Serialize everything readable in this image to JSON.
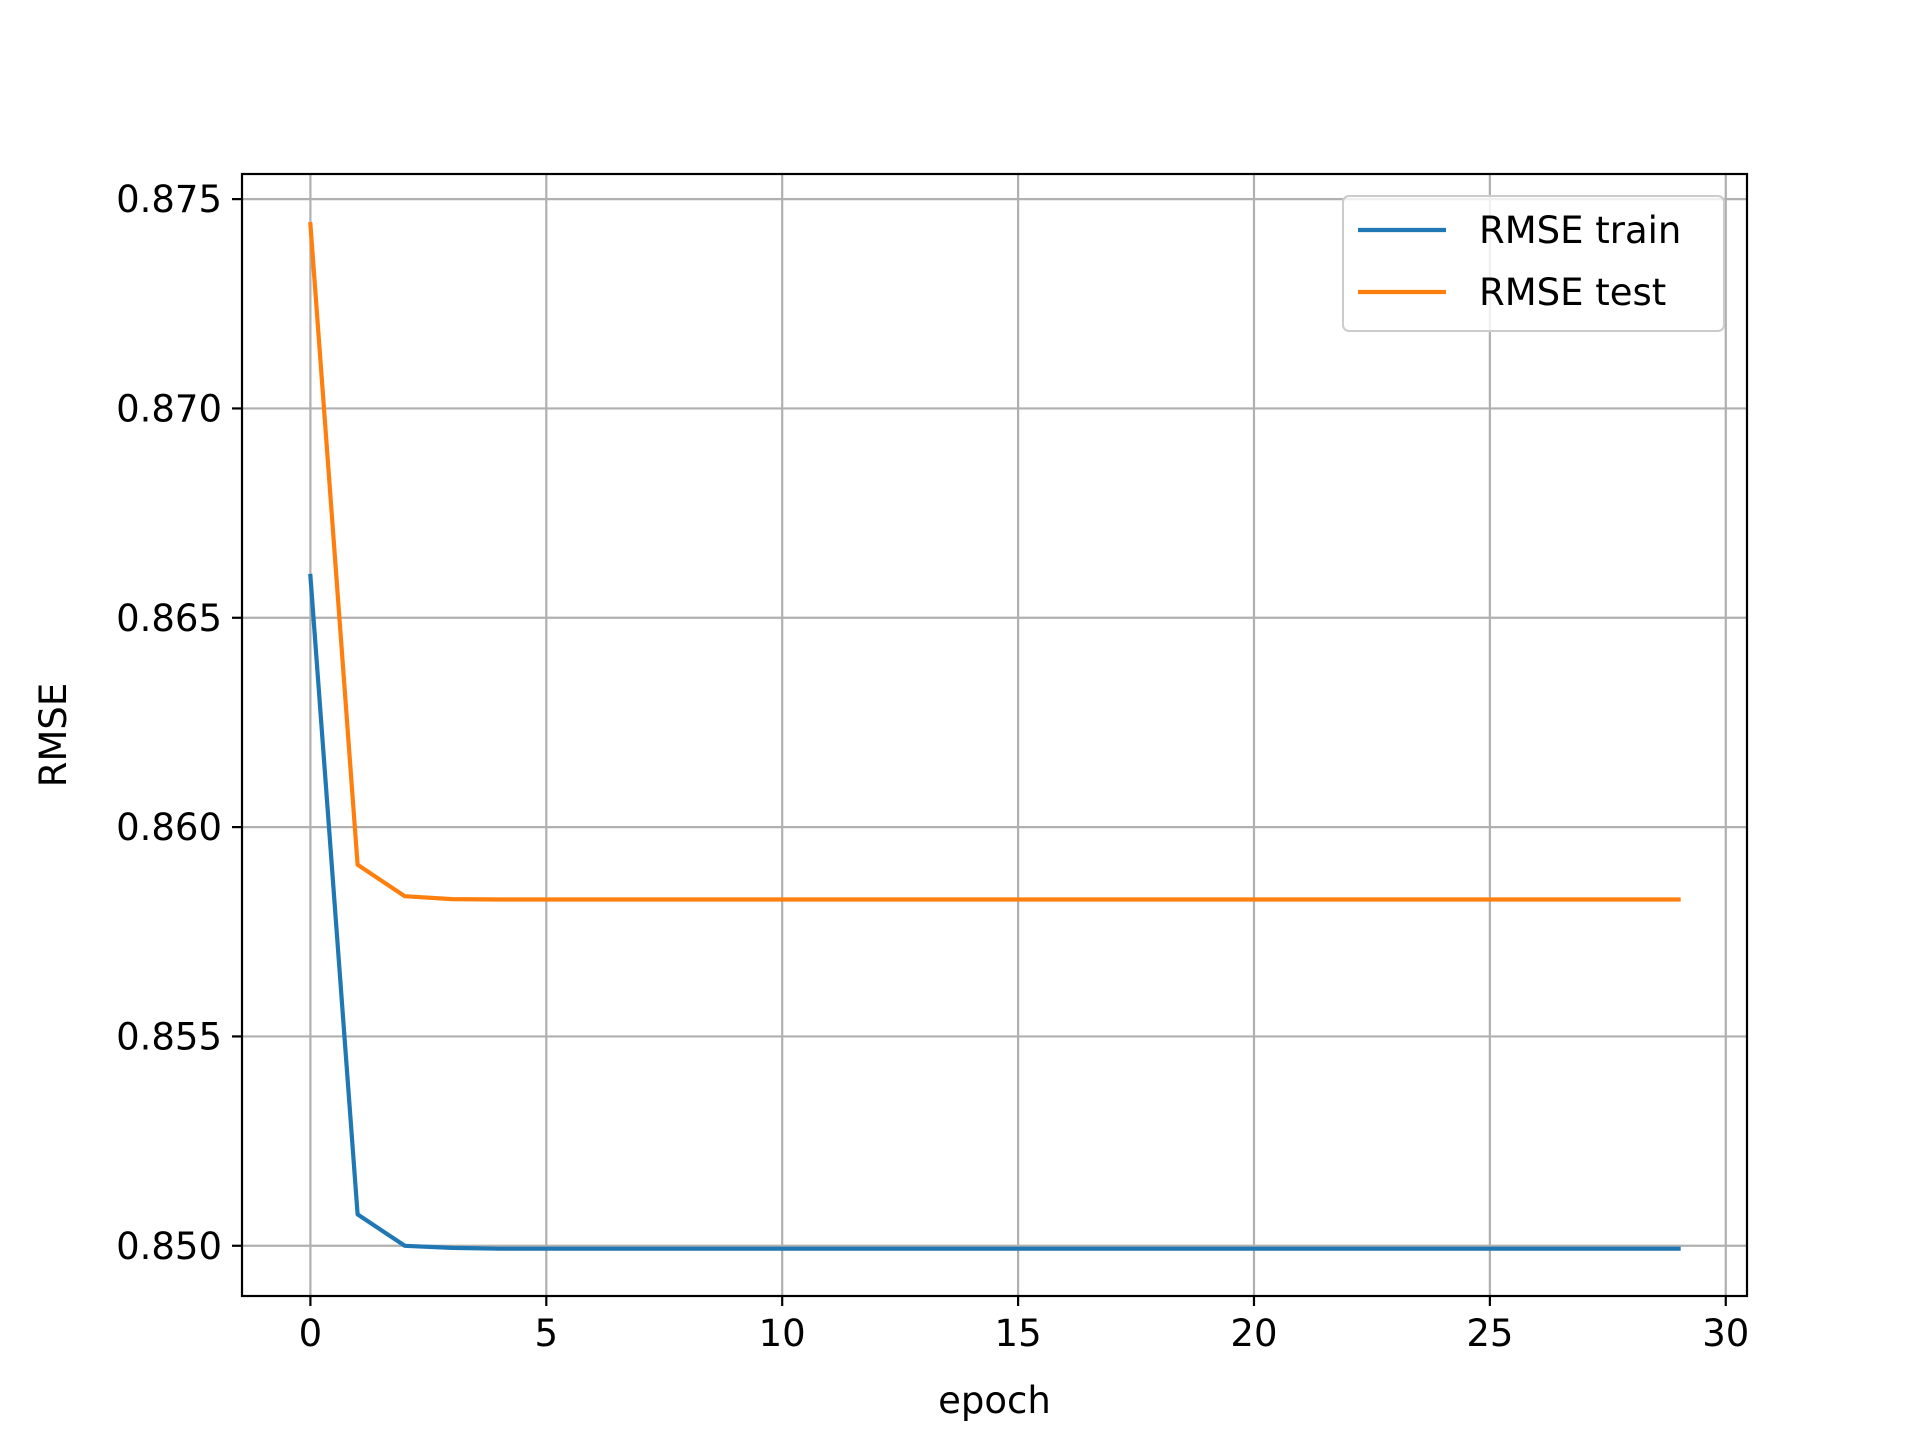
{
  "chart_data": {
    "type": "line",
    "title": "",
    "xlabel": "epoch",
    "ylabel": "RMSE",
    "xlim": [
      -1.45,
      30.45
    ],
    "ylim": [
      0.8488,
      0.8756
    ],
    "xticks": [
      0,
      5,
      10,
      15,
      20,
      25,
      30
    ],
    "xtick_labels": [
      "0",
      "5",
      "10",
      "15",
      "20",
      "25",
      "30"
    ],
    "yticks": [
      0.85,
      0.855,
      0.86,
      0.865,
      0.87,
      0.875
    ],
    "ytick_labels": [
      "0.850",
      "0.855",
      "0.860",
      "0.865",
      "0.870",
      "0.875"
    ],
    "grid": true,
    "legend_position": "top-right",
    "x": [
      0,
      1,
      2,
      3,
      4,
      5,
      6,
      7,
      8,
      9,
      10,
      11,
      12,
      13,
      14,
      15,
      16,
      17,
      18,
      19,
      20,
      21,
      22,
      23,
      24,
      25,
      26,
      27,
      28,
      29
    ],
    "series": [
      {
        "name": "RMSE train",
        "color": "#1f77b4",
        "values": [
          0.866,
          0.85075,
          0.85,
          0.84995,
          0.84993,
          0.84993,
          0.84993,
          0.84993,
          0.84993,
          0.84993,
          0.84993,
          0.84993,
          0.84993,
          0.84993,
          0.84993,
          0.84993,
          0.84993,
          0.84993,
          0.84993,
          0.84993,
          0.84993,
          0.84993,
          0.84993,
          0.84993,
          0.84993,
          0.84993,
          0.84993,
          0.84993,
          0.84993,
          0.84993
        ]
      },
      {
        "name": "RMSE test",
        "color": "#ff7f0e",
        "values": [
          0.8744,
          0.8591,
          0.85835,
          0.85828,
          0.85827,
          0.85827,
          0.85827,
          0.85827,
          0.85827,
          0.85827,
          0.85827,
          0.85827,
          0.85827,
          0.85827,
          0.85827,
          0.85827,
          0.85827,
          0.85827,
          0.85827,
          0.85827,
          0.85827,
          0.85827,
          0.85827,
          0.85827,
          0.85827,
          0.85827,
          0.85827,
          0.85827,
          0.85827,
          0.85827
        ]
      }
    ]
  }
}
